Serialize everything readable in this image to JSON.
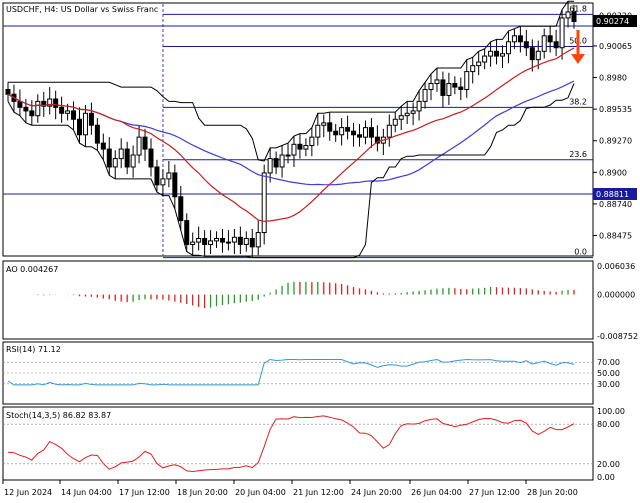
{
  "main": {
    "title": "USDCHF, H4:  US Dollar vs Swiss Franc",
    "ticks": [
      "0.90320",
      "0.90065",
      "0.8980",
      "0.89535",
      "0.89270",
      "0.8900",
      "0.88740",
      "0.88475"
    ],
    "ticks_full": [
      "0.90320",
      "0.90065",
      "0.89800",
      "0.89535",
      "0.89270",
      "0.89005",
      "0.88740",
      "0.88475"
    ],
    "current_price": "0.90274",
    "marked_price": "0.88811",
    "fib_labels": [
      "61.8",
      "50.0",
      "38.2",
      "23.6",
      "0.0"
    ],
    "fib_levels": [
      0.9033,
      0.9006,
      0.8955,
      0.8911,
      0.8829
    ],
    "arrow_color": "#ff4500",
    "ma_colors": {
      "blue": "#3c3cd7",
      "red": "#c81e1e",
      "channel": "#000000"
    }
  },
  "ao": {
    "label": "AO 0.004267",
    "ticks": [
      "0.006036",
      "0.000000",
      "-0.008752"
    ]
  },
  "rsi": {
    "label": "RSI(14) 71.12",
    "ticks": [
      "70.00",
      "50.00",
      "30.00"
    ],
    "ticks_all": [
      "70.00",
      "50.00",
      "30.00"
    ],
    "color": "#3399dd"
  },
  "stoch": {
    "label": "Stoch(14,3,5) 86.82 83.87",
    "ticks": [
      "100.00",
      "80.00",
      "20.00",
      "0.00"
    ],
    "main_color": "#e02020",
    "signal_color": "#ffffff"
  },
  "x_labels": [
    "12 Jun 2024",
    "14 Jun 04:00",
    "17 Jun 12:00",
    "18 Jun 20:00",
    "20 Jun 04:00",
    "21 Jun 12:00",
    "24 Jun 20:00",
    "26 Jun 04:00",
    "27 Jun 12:00",
    "28 Jun 20:00"
  ],
  "chart_data": {
    "type": "candlestick",
    "title": "USDCHF, H4:  US Dollar vs Swiss Franc",
    "ylim": [
      0.8832,
      0.904
    ],
    "candles_close": [
      0.8966,
      0.896,
      0.8955,
      0.8952,
      0.8948,
      0.896,
      0.8956,
      0.8962,
      0.8955,
      0.895,
      0.8952,
      0.8945,
      0.8932,
      0.895,
      0.894,
      0.8925,
      0.892,
      0.8905,
      0.8912,
      0.892,
      0.8905,
      0.8915,
      0.893,
      0.892,
      0.8905,
      0.889,
      0.8895,
      0.89,
      0.888,
      0.886,
      0.884,
      0.8842,
      0.8845,
      0.884,
      0.8843,
      0.8845,
      0.8842,
      0.8842,
      0.8846,
      0.884,
      0.8845,
      0.8838,
      0.885,
      0.89,
      0.8912,
      0.8905,
      0.8915,
      0.8915,
      0.8924,
      0.892,
      0.8923,
      0.893,
      0.894,
      0.8942,
      0.8935,
      0.8932,
      0.8938,
      0.8935,
      0.8932,
      0.893,
      0.8938,
      0.893,
      0.8925,
      0.893,
      0.894,
      0.8945,
      0.8948,
      0.895,
      0.8952,
      0.896,
      0.897,
      0.8975,
      0.8978,
      0.8965,
      0.8975,
      0.8972,
      0.897,
      0.8985,
      0.899,
      0.8993,
      0.8998,
      0.9002,
      0.8998,
      0.9,
      0.901,
      0.9015,
      0.901,
      0.9005,
      0.8995,
      0.9002,
      0.9015,
      0.901,
      0.9005,
      0.903,
      0.9035,
      0.9027
    ],
    "indicators": {
      "AO": {
        "range": [
          -0.008752,
          0.006036
        ],
        "last": 0.004267
      },
      "RSI14": {
        "levels": [
          30,
          50,
          70
        ],
        "last": 71.12
      },
      "Stoch_14_3_5": {
        "levels": [
          20,
          80
        ],
        "main_last": 86.82,
        "signal_last": 83.87
      }
    }
  }
}
